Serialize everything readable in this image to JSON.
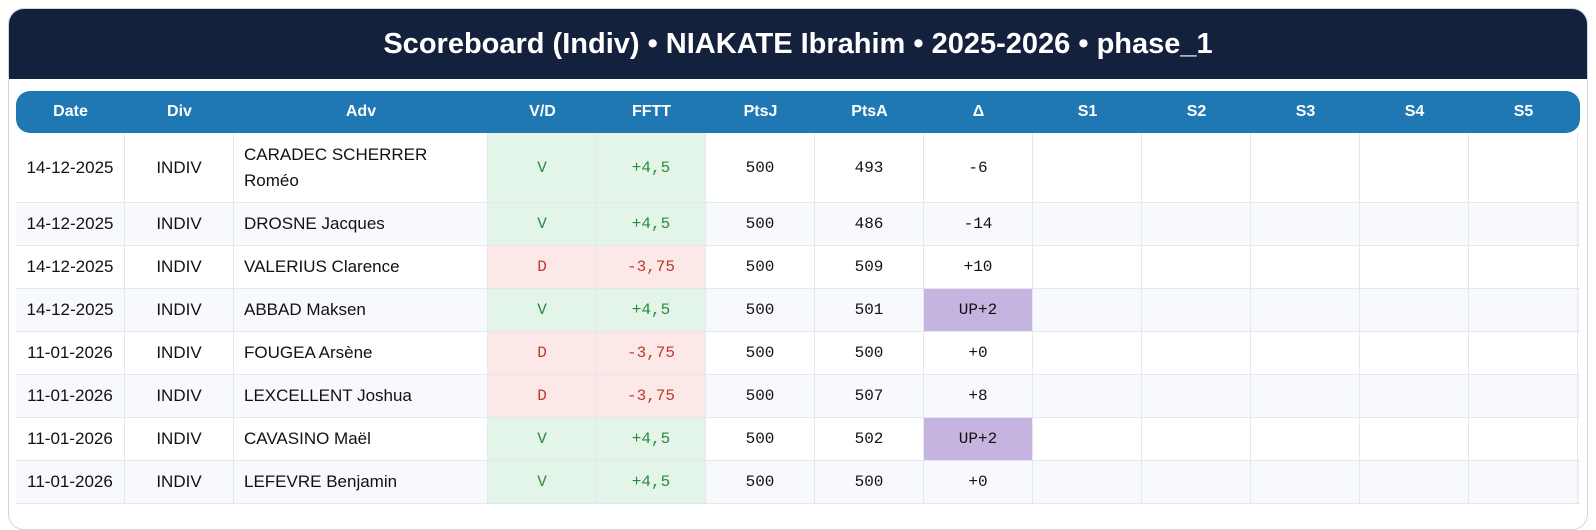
{
  "header": {
    "title": "Scoreboard (Indiv) • NIAKATE Ibrahim • 2025-2026 • phase_1"
  },
  "table": {
    "columns": [
      "Date",
      "Div",
      "Adv",
      "V/D",
      "FFTT",
      "PtsJ",
      "PtsA",
      "Δ",
      "S1",
      "S2",
      "S3",
      "S4",
      "S5"
    ],
    "rows": [
      [
        "14-12-2025",
        "INDIV",
        "CARADEC SCHERRER Roméo",
        "V",
        "+4,5",
        "500",
        "493",
        "-6"
      ],
      [
        "14-12-2025",
        "INDIV",
        "DROSNE Jacques",
        "V",
        "+4,5",
        "500",
        "486",
        "-14"
      ],
      [
        "14-12-2025",
        "INDIV",
        "VALERIUS Clarence",
        "D",
        "-3,75",
        "500",
        "509",
        "+10"
      ],
      [
        "14-12-2025",
        "INDIV",
        "ABBAD Maksen",
        "V",
        "+4,5",
        "500",
        "501",
        "UP+2"
      ],
      [
        "11-01-2026",
        "INDIV",
        "FOUGEA Arsène",
        "D",
        "-3,75",
        "500",
        "500",
        "+0"
      ],
      [
        "11-01-2026",
        "INDIV",
        "LEXCELLENT Joshua",
        "D",
        "-3,75",
        "500",
        "507",
        "+8"
      ],
      [
        "11-01-2026",
        "INDIV",
        "CAVASINO Maël",
        "V",
        "+4,5",
        "500",
        "502",
        "UP+2"
      ],
      [
        "11-01-2026",
        "INDIV",
        "LEFEVRE Benjamin",
        "V",
        "+4,5",
        "500",
        "500",
        "+0"
      ]
    ]
  }
}
